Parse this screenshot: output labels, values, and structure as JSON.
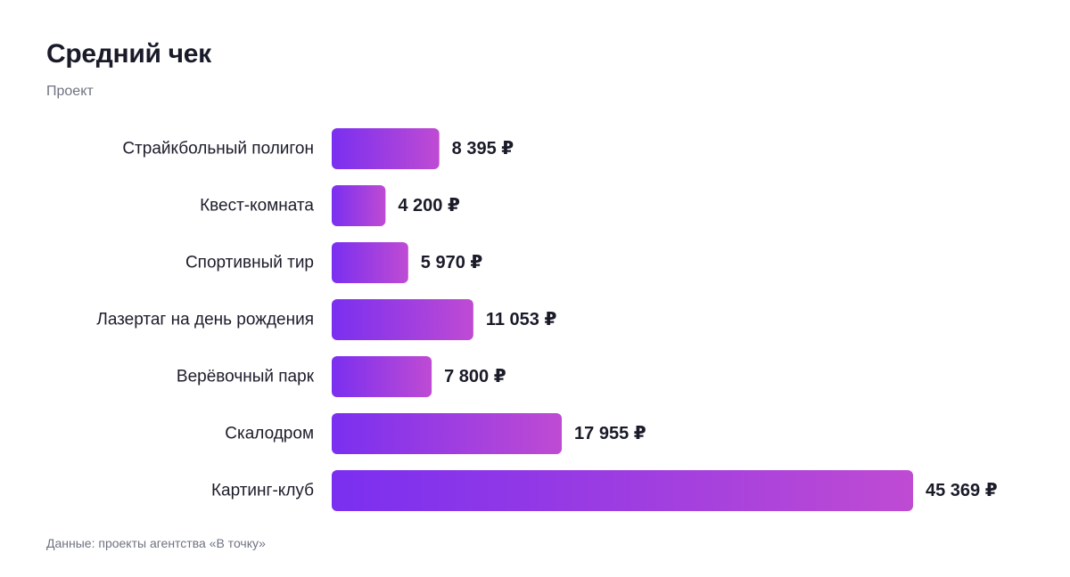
{
  "header": {
    "title": "Средний чек",
    "subtitle": "Проект"
  },
  "footer": {
    "source": "Данные: проекты агентства «В точку»"
  },
  "colors": {
    "bar_start": "#7a2ff0",
    "bar_end": "#bf4bd3",
    "text": "#1c1d2b",
    "muted": "#6f7281"
  },
  "chart_data": {
    "type": "bar",
    "orientation": "horizontal",
    "categories": [
      "Страйкбольный полигон",
      "Квест-комната",
      "Спортивный тир",
      "Лазертаг на день рождения",
      "Верёвочный парк",
      "Скалодром",
      "Картинг-клуб"
    ],
    "values": [
      8395,
      4200,
      5970,
      11053,
      7800,
      17955,
      45369
    ],
    "value_labels": [
      "8 395 ₽",
      "4 200 ₽",
      "5 970 ₽",
      "11 053 ₽",
      "7 800 ₽",
      "17 955 ₽",
      "45 369 ₽"
    ],
    "title": "Средний чек",
    "xlabel": "",
    "ylabel": "Проект",
    "xlim": [
      0,
      45369
    ],
    "grid": false,
    "legend": "none"
  }
}
